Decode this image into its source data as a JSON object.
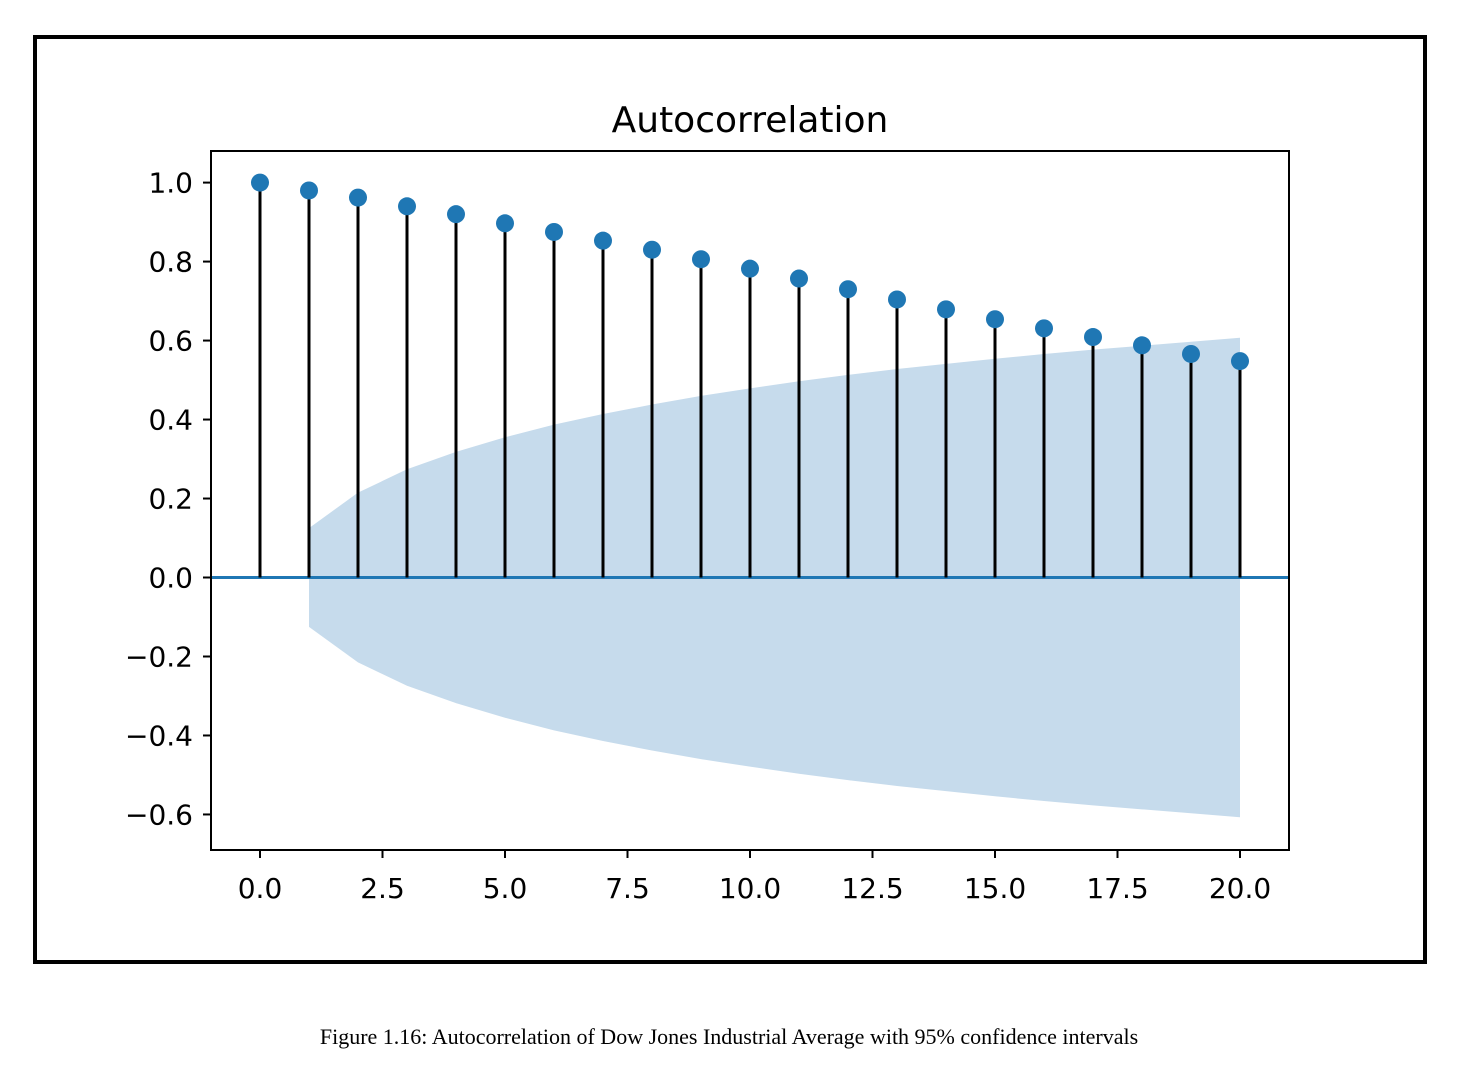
{
  "figure": {
    "caption": "Figure 1.16: Autocorrelation of Dow Jones Industrial Average with 95% confidence intervals"
  },
  "colors": {
    "marker": "#1f77b4",
    "stem": "#000000",
    "confidence_band": "#c6dbec",
    "baseline": "#1f77b4"
  },
  "chart_data": {
    "type": "stem",
    "title": "Autocorrelation",
    "xlabel": "",
    "ylabel": "",
    "x": [
      0,
      1,
      2,
      3,
      4,
      5,
      6,
      7,
      8,
      9,
      10,
      11,
      12,
      13,
      14,
      15,
      16,
      17,
      18,
      19,
      20
    ],
    "values": [
      1.0,
      0.98,
      0.962,
      0.94,
      0.92,
      0.897,
      0.875,
      0.853,
      0.83,
      0.806,
      0.782,
      0.757,
      0.73,
      0.704,
      0.679,
      0.654,
      0.631,
      0.609,
      0.588,
      0.566,
      0.548
    ],
    "confidence_interval": {
      "level": "95%",
      "x": [
        1,
        2,
        3,
        4,
        5,
        6,
        7,
        8,
        9,
        10,
        11,
        12,
        13,
        14,
        15,
        16,
        17,
        18,
        19,
        20
      ],
      "upper": [
        0.125,
        0.215,
        0.274,
        0.318,
        0.355,
        0.387,
        0.414,
        0.438,
        0.46,
        0.479,
        0.497,
        0.513,
        0.528,
        0.541,
        0.554,
        0.566,
        0.577,
        0.587,
        0.597,
        0.607
      ],
      "lower": [
        -0.125,
        -0.215,
        -0.274,
        -0.318,
        -0.355,
        -0.387,
        -0.414,
        -0.438,
        -0.46,
        -0.479,
        -0.497,
        -0.513,
        -0.528,
        -0.541,
        -0.554,
        -0.566,
        -0.577,
        -0.587,
        -0.597,
        -0.607
      ]
    },
    "xlim": [
      -1.0,
      21.0
    ],
    "ylim": [
      -0.69,
      1.08
    ],
    "x_ticks": [
      0.0,
      2.5,
      5.0,
      7.5,
      10.0,
      12.5,
      15.0,
      17.5,
      20.0
    ],
    "x_tick_labels": [
      "0.0",
      "2.5",
      "5.0",
      "7.5",
      "10.0",
      "12.5",
      "15.0",
      "17.5",
      "20.0"
    ],
    "y_ticks": [
      1.0,
      0.8,
      0.6,
      0.4,
      0.2,
      0.0,
      -0.2,
      -0.4,
      -0.6
    ],
    "y_tick_labels": [
      "1.0",
      "0.8",
      "0.6",
      "0.4",
      "0.2",
      "0.0",
      "−0.2",
      "−0.4",
      "−0.6"
    ],
    "grid": false,
    "legend": "none"
  }
}
